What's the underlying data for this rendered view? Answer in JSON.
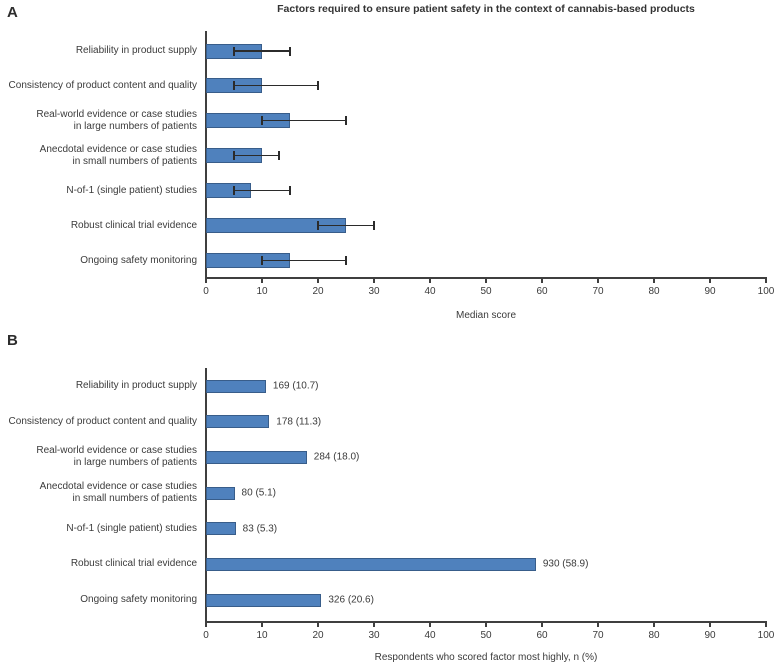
{
  "figure": {
    "title": "Factors required to ensure patient safety in the context of cannabis-based products"
  },
  "colors": {
    "bar_fill": "#4F81BD",
    "bar_border": "#385D8A",
    "axis": "#3f3f3f",
    "error_bar": "#2b2b2b",
    "text": "#3b3b3b"
  },
  "chart_data": [
    {
      "panel": "A",
      "type": "bar",
      "orientation": "horizontal",
      "categories": [
        "Reliability in product supply",
        "Consistency of product content and quality",
        "Real-world evidence or case studies\nin large numbers of patients",
        "Anecdotal evidence or case studies\nin small numbers of patients",
        "N-of-1 (single patient) studies",
        "Robust clinical trial evidence",
        "Ongoing safety monitoring"
      ],
      "values": [
        10,
        10,
        15,
        10,
        8,
        25,
        15
      ],
      "error_low": [
        5,
        5,
        10,
        5,
        5,
        20,
        10
      ],
      "error_high": [
        15,
        20,
        25,
        13,
        15,
        30,
        25
      ],
      "xlabel": "Median score",
      "xlim": [
        0,
        100
      ],
      "xticks": [
        0,
        10,
        20,
        30,
        40,
        50,
        60,
        70,
        80,
        90,
        100
      ],
      "grid": false,
      "legend": null
    },
    {
      "panel": "B",
      "type": "bar",
      "orientation": "horizontal",
      "categories": [
        "Reliability in product supply",
        "Consistency of product content and quality",
        "Real-world evidence or case studies\nin large numbers of patients",
        "Anecdotal evidence or case studies\nin small numbers of patients",
        "N-of-1 (single patient) studies",
        "Robust clinical trial evidence",
        "Ongoing safety monitoring"
      ],
      "values": [
        10.7,
        11.3,
        18.0,
        5.1,
        5.3,
        58.9,
        20.6
      ],
      "counts": [
        169,
        178,
        284,
        80,
        83,
        930,
        326
      ],
      "bar_labels": [
        "169 (10.7)",
        "178 (11.3)",
        "284 (18.0)",
        "80 (5.1)",
        "83 (5.3)",
        "930 (58.9)",
        "326 (20.6)"
      ],
      "xlabel": "Respondents who scored factor most highly, n (%)",
      "xlim": [
        0,
        100
      ],
      "xticks": [
        0,
        10,
        20,
        30,
        40,
        50,
        60,
        70,
        80,
        90,
        100
      ],
      "grid": false,
      "legend": null
    }
  ]
}
